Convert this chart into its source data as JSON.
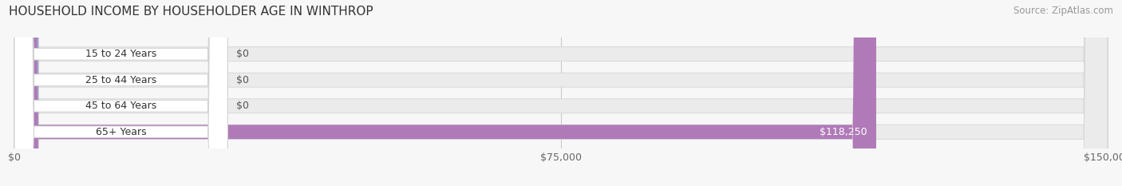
{
  "title": "HOUSEHOLD INCOME BY HOUSEHOLDER AGE IN WINTHROP",
  "source": "Source: ZipAtlas.com",
  "categories": [
    "15 to 24 Years",
    "25 to 44 Years",
    "45 to 64 Years",
    "65+ Years"
  ],
  "values": [
    0,
    0,
    0,
    118250
  ],
  "max_value": 150000,
  "bar_colors": [
    "#f0b87a",
    "#e88888",
    "#90acd4",
    "#b07ab8"
  ],
  "value_labels": [
    "$0",
    "$0",
    "$0",
    "$118,250"
  ],
  "xtick_values": [
    0,
    75000,
    150000
  ],
  "xtick_labels": [
    "$0",
    "$75,000",
    "$150,000"
  ],
  "bg_color": "#f7f7f7",
  "bar_bg_color": "#ebebeb",
  "bar_border_color": "#d8d8d8",
  "title_fontsize": 11,
  "source_fontsize": 8.5,
  "label_fontsize": 9,
  "tick_fontsize": 9,
  "bar_height": 0.55,
  "label_bg_color": "#ffffff",
  "label_border_color": "#d0d0d0"
}
